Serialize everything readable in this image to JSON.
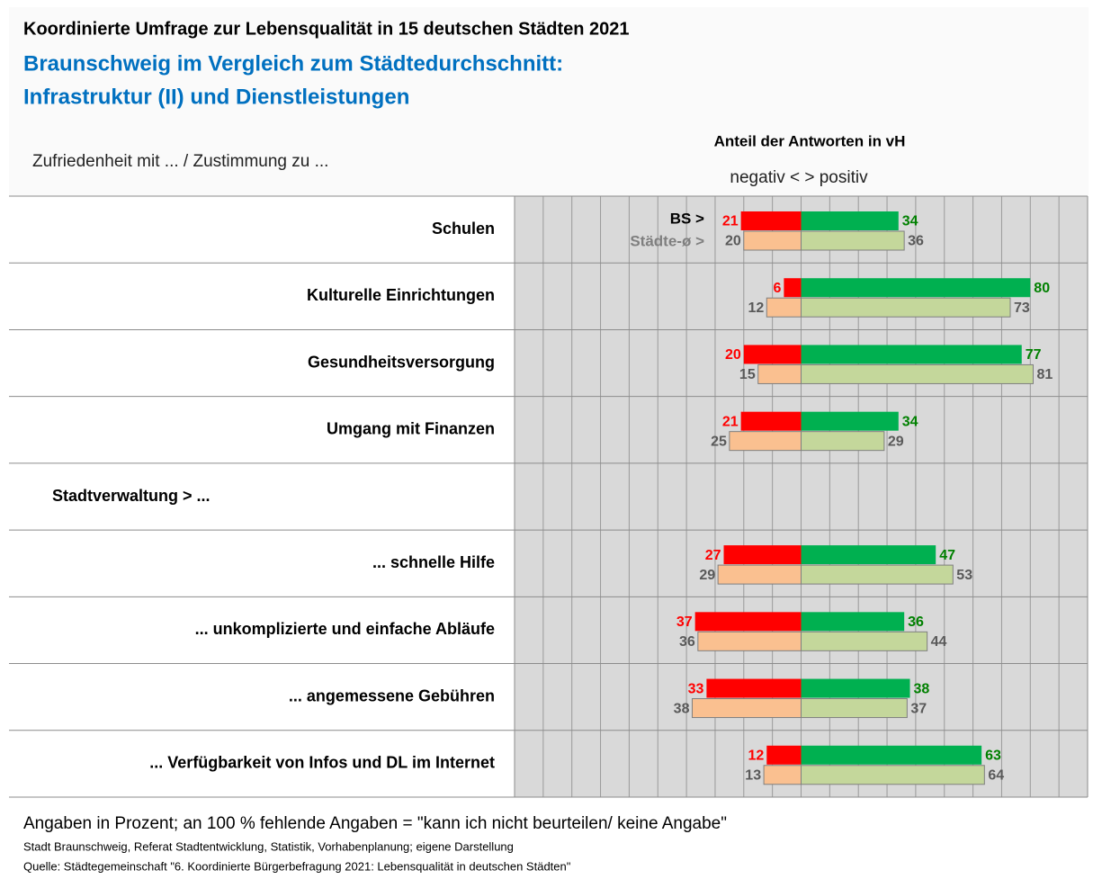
{
  "chart_data": {
    "type": "diverging_bar",
    "title": "Koordinierte Umfrage zur Lebensqualität in 15 deutschen Städten 2021",
    "subtitle": [
      "Braunschweig im Vergleich zum Städtedurchschnitt:",
      "Infrastruktur (II) und Dienstleistungen"
    ],
    "row_header": "Zufriedenheit mit ... / Zustimmung zu  ...",
    "value_header": "Anteil der Antworten in vH",
    "direction_label": "negativ < > positiv",
    "categories": [
      "Schulen",
      "Kulturelle Einrichtungen",
      "Gesundheitsversorgung",
      "Umgang mit Finanzen",
      "Stadtverwaltung > ...",
      "... schnelle Hilfe",
      "... unkomplizierte und einfache Abläufe",
      "... angemessene Gebühren",
      "... Verfügbarkeit von Infos und DL im Internet"
    ],
    "series": [
      {
        "name": "BS >",
        "color": "#00b050",
        "negative_color": "#ff0000",
        "label_color": "#008000",
        "negative_label_color": "#ff0000",
        "legend_color": "#000000",
        "values": [
          34,
          80,
          77,
          34,
          null,
          47,
          36,
          38,
          63
        ],
        "negative_values": [
          -21,
          -6,
          -20,
          -21,
          null,
          -27,
          -37,
          -33,
          -12
        ],
        "negative_value_labels": [
          "21",
          "6",
          "20",
          "21",
          null,
          "27",
          "37",
          "33",
          "12"
        ]
      },
      {
        "name": "Städte-ø >",
        "color": "#c4d79b",
        "negative_color": "#fac090",
        "label_color": "#595959",
        "negative_label_color": "#595959",
        "legend_color": "#7f7f7f",
        "values": [
          36,
          73,
          81,
          29,
          null,
          53,
          44,
          37,
          64
        ],
        "negative_values": [
          -20,
          -12,
          -15,
          -25,
          null,
          -29,
          -36,
          -38,
          -13
        ],
        "negative_value_labels": [
          "20",
          "12",
          "15",
          "25",
          null,
          "29",
          "36",
          "38",
          "13"
        ]
      }
    ],
    "xlim": [
      -100,
      100
    ],
    "xticks": [
      -100,
      -90,
      -80,
      -70,
      -60,
      -50,
      -40,
      -30,
      -20,
      -10,
      0,
      10,
      20,
      30,
      40,
      50,
      60,
      70,
      80,
      90,
      100
    ],
    "grid": true,
    "notes": [
      "Angaben in Prozent; an 100 % fehlende Angaben = \"kann ich nicht beurteilen/ keine Angabe\"",
      "Stadt Braunschweig, Referat Stadtentwicklung, Statistik, Vorhabenplanung; eigene Darstellung",
      "Quelle: Städtegemeinschaft \"6. Koordinierte Bürgerbefragung 2021: Lebensqualität in deutschen Städten\""
    ]
  }
}
